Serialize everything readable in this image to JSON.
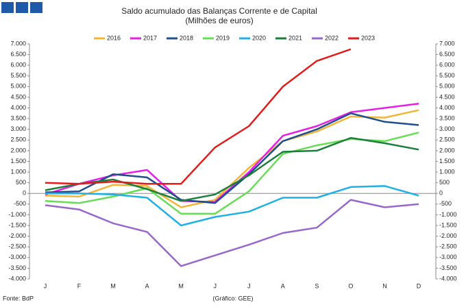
{
  "chart_data": {
    "type": "line",
    "title": "Saldo acumulado das Balanças Corrente e de Capital",
    "subtitle": "(Milhões de euros)",
    "source": "Fonte: BdP",
    "credit": "(Gráfico: GEE)",
    "categories": [
      "J",
      "F",
      "M",
      "A",
      "M",
      "J",
      "J",
      "A",
      "S",
      "O",
      "N",
      "D"
    ],
    "series": [
      {
        "name": "2016",
        "color": "#f2b536",
        "values": [
          -100,
          -150,
          400,
          350,
          -650,
          -300,
          1200,
          2450,
          2900,
          3600,
          3550,
          3900
        ]
      },
      {
        "name": "2017",
        "color": "#e61ee6",
        "values": [
          -50,
          450,
          850,
          1100,
          -350,
          -400,
          1000,
          2700,
          3150,
          3800,
          4000,
          4200
        ]
      },
      {
        "name": "2018",
        "color": "#1f4e8c",
        "values": [
          50,
          100,
          900,
          750,
          -300,
          -450,
          900,
          2450,
          3000,
          3750,
          3350,
          3200
        ]
      },
      {
        "name": "2019",
        "color": "#66dd55",
        "values": [
          -350,
          -450,
          -150,
          250,
          -950,
          -950,
          100,
          1850,
          2250,
          2550,
          2450,
          2850
        ]
      },
      {
        "name": "2020",
        "color": "#1fb0e6",
        "values": [
          0,
          0,
          -50,
          -200,
          -1500,
          -1100,
          -850,
          -200,
          -200,
          300,
          350,
          -100
        ]
      },
      {
        "name": "2021",
        "color": "#1a7f3a",
        "values": [
          150,
          450,
          650,
          200,
          -350,
          -50,
          850,
          1950,
          2000,
          2600,
          2350,
          2050
        ]
      },
      {
        "name": "2022",
        "color": "#9966cc",
        "values": [
          -550,
          -750,
          -1400,
          -1800,
          -3400,
          -2900,
          -2400,
          -1850,
          -1600,
          -300,
          -650,
          -500
        ]
      },
      {
        "name": "2023",
        "color": "#e31b1b",
        "values": [
          500,
          450,
          550,
          450,
          450,
          2150,
          3150,
          5000,
          6200,
          6750,
          null,
          null
        ]
      }
    ],
    "ylim": [
      -4000,
      7000
    ],
    "yticks": [
      {
        "value": -4000,
        "label": "-4.000"
      },
      {
        "value": -3500,
        "label": "-3.500"
      },
      {
        "value": -3000,
        "label": "-3.000"
      },
      {
        "value": -2500,
        "label": "-2.500"
      },
      {
        "value": -2000,
        "label": "-2.000"
      },
      {
        "value": -1500,
        "label": "-1.500"
      },
      {
        "value": -1000,
        "label": "-1.000"
      },
      -500,
      0,
      500,
      {
        "value": 1000,
        "label": "1.000"
      },
      {
        "value": 1500,
        "label": "1.500"
      },
      {
        "value": 2000,
        "label": "2.000"
      },
      {
        "value": 2500,
        "label": "2.500"
      },
      {
        "value": 3000,
        "label": "3.000"
      },
      {
        "value": 3500,
        "label": "3.500"
      },
      {
        "value": 4000,
        "label": "4.000"
      },
      {
        "value": 4500,
        "label": "4.500"
      },
      {
        "value": 5000,
        "label": "5.000"
      },
      {
        "value": 5500,
        "label": "5.500"
      },
      {
        "value": 6000,
        "label": "6.000"
      },
      {
        "value": 6500,
        "label": "6.500"
      },
      {
        "value": 7000,
        "label": "7.000"
      }
    ],
    "y2lim": [
      -4000,
      7000
    ],
    "y2ticks": [
      {
        "value": -4000,
        "label": "-4.000"
      },
      {
        "value": -3500,
        "label": "-3.500"
      },
      {
        "value": -3000,
        "label": "-3.000"
      },
      {
        "value": -2500,
        "label": "-2.500"
      },
      {
        "value": -2000,
        "label": "-2.000"
      },
      {
        "value": -1500,
        "label": "-1.500"
      },
      {
        "value": -1000,
        "label": "-1.000"
      },
      -500,
      0,
      500,
      {
        "value": 1000,
        "label": "1.000"
      },
      {
        "value": 1500,
        "label": "1.500"
      },
      {
        "value": 2000,
        "label": "2.000"
      },
      {
        "value": 2500,
        "label": "2.500"
      },
      {
        "value": 3000,
        "label": "3.000"
      },
      {
        "value": 3500,
        "label": "3.500"
      },
      {
        "value": 4000,
        "label": "4.000"
      },
      {
        "value": 4500,
        "label": "4.500"
      },
      {
        "value": 5000,
        "label": "5.000"
      },
      {
        "value": 5500,
        "label": "5.500"
      },
      {
        "value": 6000,
        "label": "6.000"
      },
      {
        "value": 6500,
        "label": "6.500"
      },
      {
        "value": 7000,
        "label": "7.000"
      }
    ],
    "grid": false,
    "legend": "top"
  }
}
